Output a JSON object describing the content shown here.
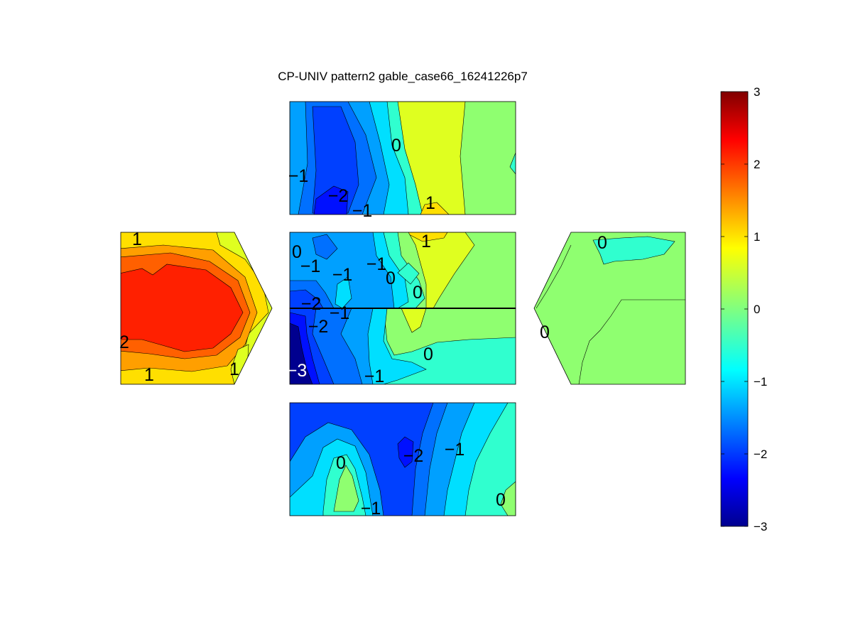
{
  "chart_data": {
    "type": "contour",
    "title": "CP-UNIV pattern2 gable_case66_16241226p7",
    "colorbar": {
      "min": -3,
      "max": 3,
      "ticks": [
        "3",
        "2",
        "1",
        "0",
        "−1",
        "−2",
        "−3"
      ],
      "colormap": "jet"
    },
    "panels": [
      {
        "name": "top-face",
        "contour_labels": [
          "0",
          "−1",
          "−2",
          "−1",
          "1"
        ]
      },
      {
        "name": "left-gable",
        "contour_labels": [
          "1",
          "2",
          "1",
          "1"
        ]
      },
      {
        "name": "center-upper",
        "contour_labels": [
          "1",
          "0",
          "−1",
          "−1",
          "−1",
          "0",
          "0",
          "−2",
          "−1"
        ]
      },
      {
        "name": "center-lower",
        "contour_labels": [
          "−2",
          "−3",
          "0",
          "−1"
        ]
      },
      {
        "name": "right-gable",
        "contour_labels": [
          "0",
          "0"
        ]
      },
      {
        "name": "bottom-face",
        "contour_labels": [
          "−2",
          "−1",
          "0",
          "−1",
          "0"
        ]
      }
    ]
  },
  "colors": {
    "c_m3": "#00008f",
    "c_m25": "#0010ff",
    "c_m2": "#0040ff",
    "c_m15": "#0070ff",
    "c_m1": "#00a0ff",
    "c_m05": "#00dfff",
    "c_m02": "#30ffcf",
    "c_0": "#8fff70",
    "c_05": "#dfff20",
    "c_1": "#ffdf00",
    "c_15": "#ff9f00",
    "c_2": "#ff6000",
    "c_25": "#ff2000",
    "c_3": "#800000"
  }
}
